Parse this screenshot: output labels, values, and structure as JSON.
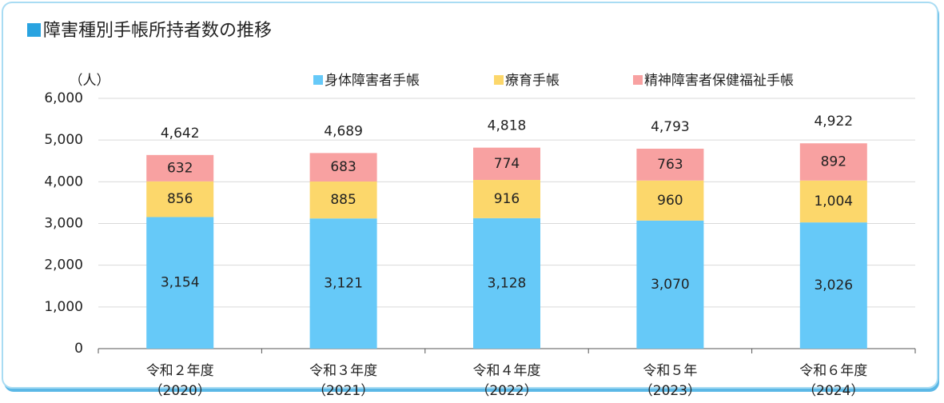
{
  "chart_data": {
    "type": "stacked-bar",
    "title": "障害種別手帳所持者数の推移",
    "y_label": "（人）",
    "categories": [
      "令和２年度\n（2020）",
      "令和３年度\n（2021）",
      "令和４年度\n（2022）",
      "令和５年\n（2023）",
      "令和６年度\n（2024）"
    ],
    "series": [
      {
        "name": "身体障害者手帳",
        "color": "#66c9f8",
        "values": [
          3154,
          3121,
          3128,
          3070,
          3026
        ],
        "value_labels": [
          "3,154",
          "3,121",
          "3,128",
          "3,070",
          "3,026"
        ]
      },
      {
        "name": "療育手帳",
        "color": "#fcd76b",
        "values": [
          856,
          885,
          916,
          960,
          1004
        ],
        "value_labels": [
          "856",
          "885",
          "916",
          "960",
          "1,004"
        ]
      },
      {
        "name": "精神障害者保健福祉手帳",
        "color": "#f8a1a1",
        "values": [
          632,
          683,
          774,
          763,
          892
        ],
        "value_labels": [
          "632",
          "683",
          "774",
          "763",
          "892"
        ]
      }
    ],
    "totals": {
      "values": [
        4642,
        4689,
        4818,
        4793,
        4922
      ],
      "value_labels": [
        "4,642",
        "4,689",
        "4,818",
        "4,793",
        "4,922"
      ]
    },
    "ylim": [
      0,
      6000
    ],
    "yticks": [
      0,
      {
        "value": 1000,
        "label": "1,000"
      },
      {
        "value": 2000,
        "label": "2,000"
      },
      {
        "value": 3000,
        "label": "3,000"
      },
      {
        "value": 4000,
        "label": "4,000"
      },
      {
        "value": 5000,
        "label": "5,000"
      },
      {
        "value": 6000,
        "label": "6,000"
      }
    ],
    "grid": true,
    "legend": "top"
  }
}
